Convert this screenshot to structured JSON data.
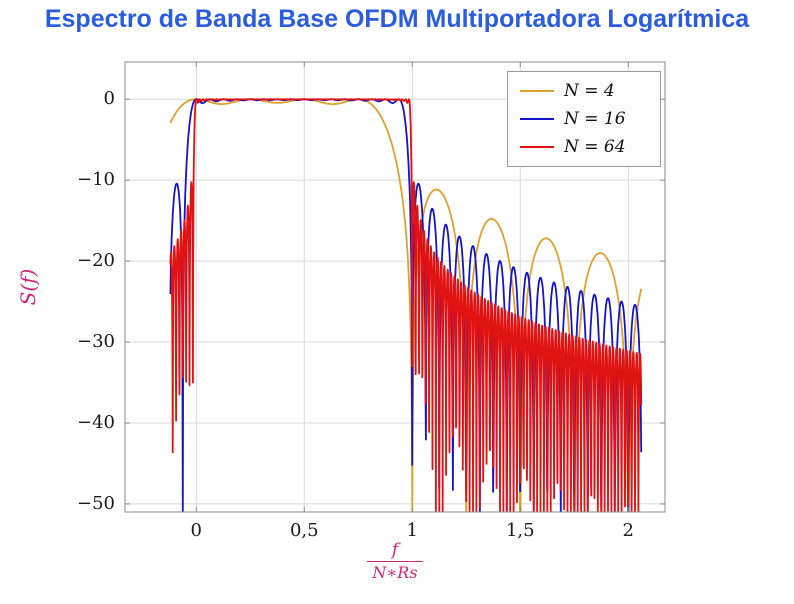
{
  "colors": {
    "title": "#2a5ce0",
    "axis_label": "#cb2778",
    "grid": "#d8d8d8",
    "axis": "#8a8a8a",
    "background": "#ffffff"
  },
  "chart_data": {
    "type": "line",
    "title": "Espectro de Banda Base OFDM Multiportadora Logarítmica",
    "ylabel": "S(f)",
    "xlabel_numerator": "f",
    "xlabel_denominator": "N∗Rs",
    "xlim": [
      -0.33,
      2.17
    ],
    "ylim": [
      -51,
      4.6
    ],
    "x_ticks": [
      {
        "v": 0,
        "label": "0"
      },
      {
        "v": 0.5,
        "label": "0,5"
      },
      {
        "v": 1,
        "label": "1"
      },
      {
        "v": 1.5,
        "label": "1,5"
      },
      {
        "v": 2,
        "label": "2"
      }
    ],
    "y_ticks": [
      {
        "v": 0,
        "label": "0"
      },
      {
        "v": -10,
        "label": "−10"
      },
      {
        "v": -20,
        "label": "−20"
      },
      {
        "v": -30,
        "label": "−30"
      },
      {
        "v": -40,
        "label": "−40"
      },
      {
        "v": -50,
        "label": "−50"
      }
    ],
    "grid": true,
    "legend_position": "top-right",
    "curve_model": "S_N(x) = 10*log10( sum_{k=0}^{N-1} sinc^2(N*x - k) ), sinc(u)=sin(pi*u)/(pi*u), x = f/(N*Rs); flat 0 dB passband over 0<=x<=1, sidelobes decaying beyond, clipped at -50 dB",
    "x_domain": [
      -0.12,
      2.06
    ],
    "clip_db_min": -51,
    "series": [
      {
        "label": "N = 4",
        "N": 4,
        "color": "#e0a030",
        "samples": 1600
      },
      {
        "label": "N = 16",
        "N": 16,
        "color": "#1414cc",
        "samples": 1100
      },
      {
        "label": "N = 64",
        "N": 64,
        "color": "#e01212",
        "samples": 1800
      }
    ]
  }
}
